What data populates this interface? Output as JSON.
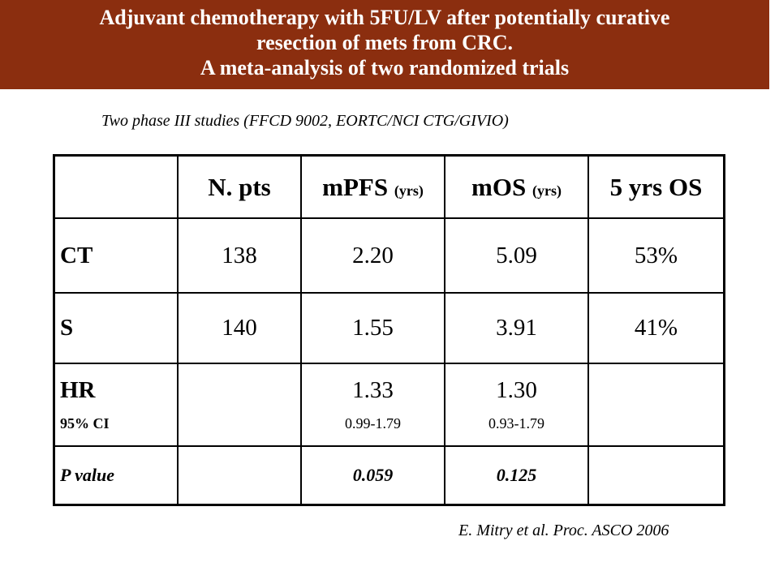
{
  "header": {
    "title_lines": [
      "Adjuvant chemotherapy with 5FU/LV after potentially curative",
      "resection of mets from CRC.",
      "A meta-analysis of two randomized trials"
    ]
  },
  "subtitle": "Two phase III studies (FFCD 9002, EORTC/NCI CTG/GIVIO)",
  "table": {
    "columns": [
      {
        "text": "N. pts"
      },
      {
        "text": "mPFS",
        "unit": "(yrs)"
      },
      {
        "text": "mOS",
        "unit": "(yrs)"
      },
      {
        "text": "5 yrs OS"
      }
    ],
    "rows": [
      {
        "label": "CT",
        "cells": [
          "138",
          "2.20",
          "5.09",
          "53%"
        ]
      },
      {
        "label": "S",
        "cells": [
          "140",
          "1.55",
          "3.91",
          "41%"
        ]
      },
      {
        "label": "HR",
        "sublabel": "95% CI",
        "cells": [
          null,
          {
            "value": "1.33",
            "ci": "0.99-1.79"
          },
          {
            "value": "1.30",
            "ci": "0.93-1.79"
          },
          null
        ]
      },
      {
        "label": "P value",
        "cells": [
          null,
          "0.059",
          "0.125",
          null
        ]
      }
    ]
  },
  "footnote": "E. Mitry et al. Proc. ASCO 2006"
}
